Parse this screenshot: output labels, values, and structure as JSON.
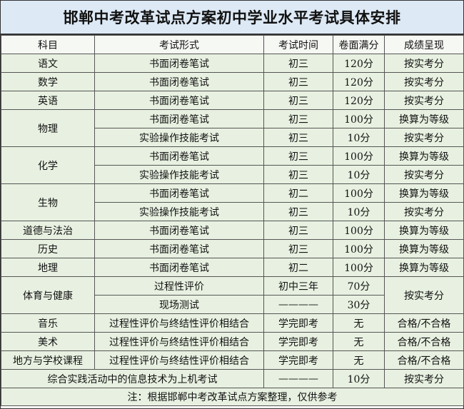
{
  "title": "邯郸中考改革试点方案初中学业水平考试具体安排",
  "headers": [
    "科目",
    "考试形式",
    "考试时间",
    "卷面满分",
    "成绩呈现"
  ],
  "rows": {
    "chinese": {
      "subject": "语文",
      "form": "书面闭卷笔试",
      "time": "初三",
      "score": "120分",
      "result": "按实考分"
    },
    "math": {
      "subject": "数学",
      "form": "书面闭卷笔试",
      "time": "初三",
      "score": "120分",
      "result": "按实考分"
    },
    "english": {
      "subject": "英语",
      "form": "书面闭卷笔试",
      "time": "初三",
      "score": "120分",
      "result": "按实考分"
    },
    "physics": {
      "subject": "物理",
      "written": {
        "form": "书面闭卷笔试",
        "time": "初三",
        "score": "100分",
        "result": "换算为等级"
      },
      "lab": {
        "form": "实验操作技能考试",
        "time": "初三",
        "score": "10分",
        "result": "按实考分"
      }
    },
    "chemistry": {
      "subject": "化学",
      "written": {
        "form": "书面闭卷笔试",
        "time": "初三",
        "score": "100分",
        "result": "换算为等级"
      },
      "lab": {
        "form": "实验操作技能考试",
        "time": "初三",
        "score": "10分",
        "result": "按实考分"
      }
    },
    "biology": {
      "subject": "生物",
      "written": {
        "form": "书面闭卷笔试",
        "time": "初二",
        "score": "100分",
        "result": "换算为等级"
      },
      "lab": {
        "form": "实验操作技能考试",
        "time": "初三",
        "score": "10分",
        "result": "按实考分"
      }
    },
    "morality": {
      "subject": "道德与法治",
      "form": "书面闭卷笔试",
      "time": "初三",
      "score": "100分",
      "result": "换算为等级"
    },
    "history": {
      "subject": "历史",
      "form": "书面闭卷笔试",
      "time": "初三",
      "score": "100分",
      "result": "换算为等级"
    },
    "geography": {
      "subject": "地理",
      "form": "书面闭卷笔试",
      "time": "初二",
      "score": "100分",
      "result": "换算为等级"
    },
    "pe": {
      "subject": "体育与健康",
      "result": "按实考分",
      "process": {
        "form": "过程性评价",
        "time": "初中三年",
        "score": "70分"
      },
      "test": {
        "form": "现场测试",
        "time": "————",
        "score": "30分"
      }
    },
    "music": {
      "subject": "音乐",
      "form": "过程性评价与终结性评价相结合",
      "time": "学完即考",
      "score": "无",
      "result": "合格/不合格"
    },
    "art": {
      "subject": "美术",
      "form": "过程性评价与终结性评价相结合",
      "time": "学完即考",
      "score": "无",
      "result": "合格/不合格"
    },
    "local": {
      "subject": "地方与学校课程",
      "form": "过程性评价与终结性评价相结合",
      "time": "学完即考",
      "score": "无",
      "result": "合格/不合格"
    },
    "it": {
      "subject": "综合实践活动中的信息技术为上机考试",
      "time": "————",
      "score": "10分",
      "result": "按实考分"
    }
  },
  "note": "注：根据邯郸中考改革试点方案整理，仅供参考"
}
